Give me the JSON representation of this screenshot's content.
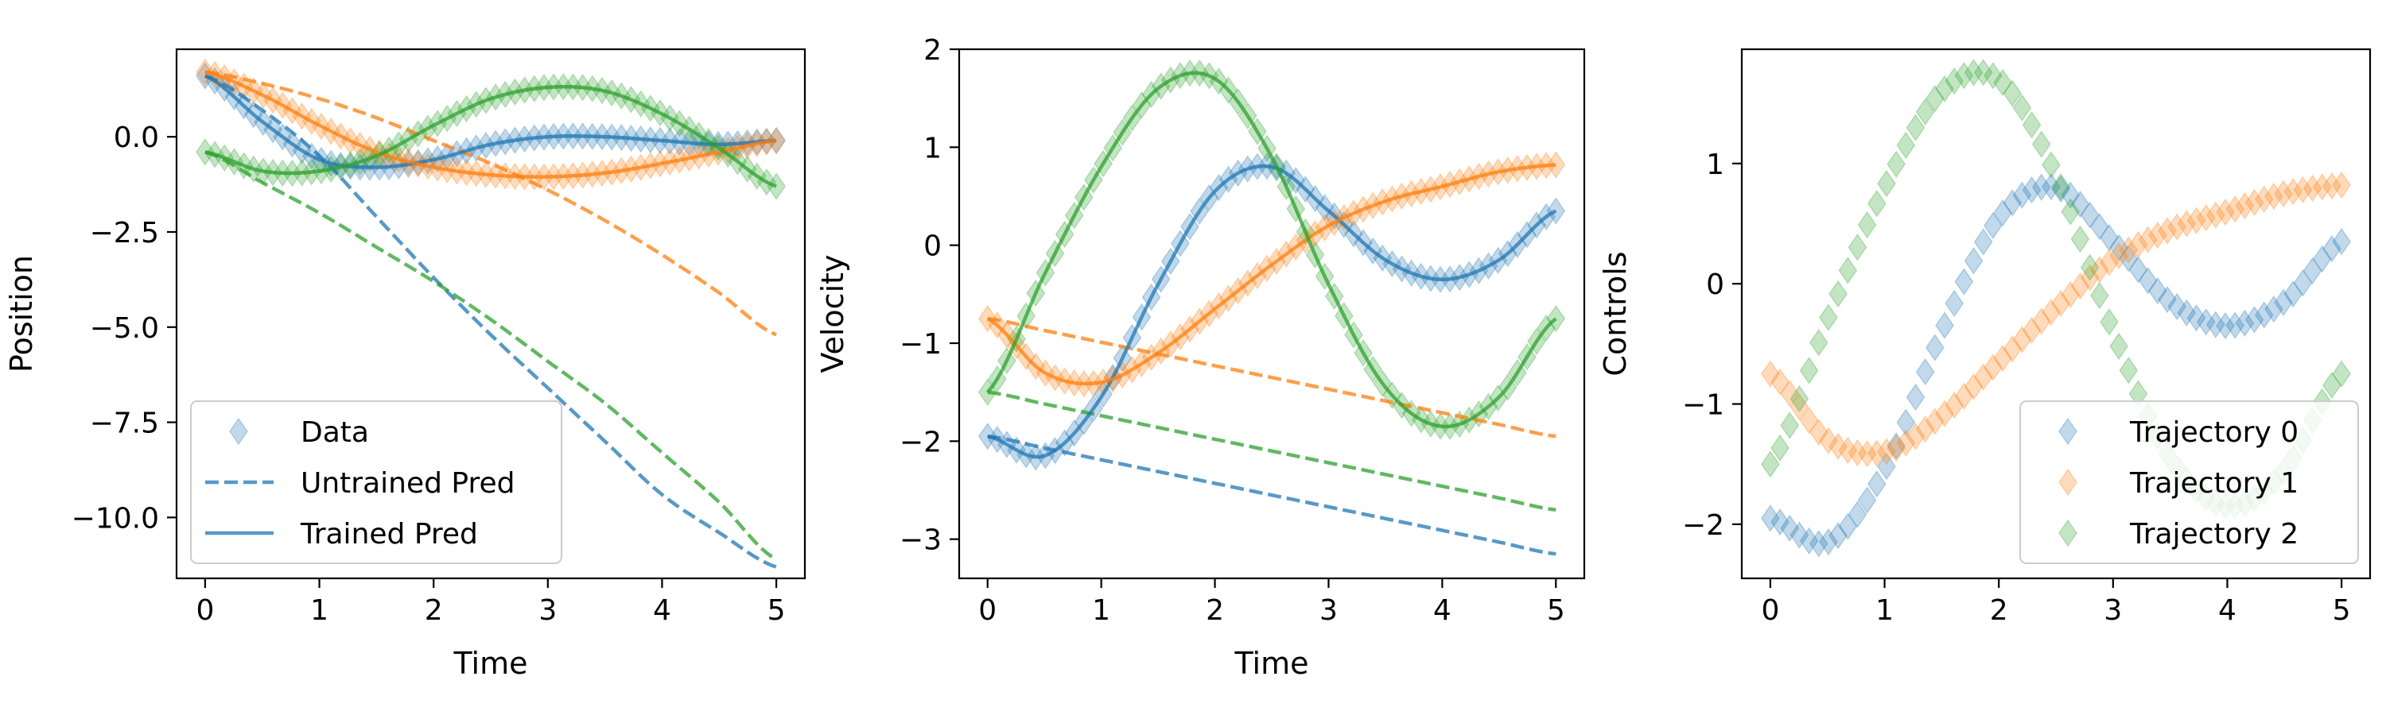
{
  "colors": {
    "traj0": "#1f77b4",
    "traj1": "#ff7f0e",
    "traj2": "#2ca02c"
  },
  "chart_data": [
    {
      "type": "line",
      "id": "position",
      "xlabel": "Time",
      "ylabel": "Position",
      "xlim": [
        -0.25,
        5.25
      ],
      "ylim": [
        -11.6,
        2.3
      ],
      "xticks": [
        0,
        1,
        2,
        3,
        4,
        5
      ],
      "xtick_labels": [
        "0",
        "1",
        "2",
        "3",
        "4",
        "5"
      ],
      "yticks": [
        0.0,
        -2.5,
        -5.0,
        -7.5,
        -10.0
      ],
      "ytick_labels": [
        "0.0",
        "−2.5",
        "−5.0",
        "−7.5",
        "−10.0"
      ],
      "legend_position": "lower-left",
      "legend": [
        {
          "label": "Data",
          "style": "diamond"
        },
        {
          "label": "Untrained Pred",
          "style": "dashed"
        },
        {
          "label": "Trained Pred",
          "style": "solid"
        }
      ],
      "x": [
        0,
        0.5,
        1,
        1.5,
        2,
        2.5,
        3,
        3.5,
        4,
        4.5,
        5
      ],
      "data_series": [
        {
          "color_key": "traj0",
          "values": [
            1.6,
            0.4,
            -0.6,
            -0.8,
            -0.6,
            -0.2,
            0.0,
            0.0,
            -0.1,
            -0.2,
            -0.1
          ]
        },
        {
          "color_key": "traj1",
          "values": [
            1.7,
            1.1,
            0.3,
            -0.4,
            -0.8,
            -1.0,
            -1.05,
            -0.95,
            -0.7,
            -0.4,
            -0.1
          ]
        },
        {
          "color_key": "traj2",
          "values": [
            -0.4,
            -0.9,
            -0.9,
            -0.5,
            0.3,
            1.0,
            1.3,
            1.2,
            0.6,
            -0.3,
            -1.3
          ]
        }
      ],
      "untrained": [
        {
          "color_key": "traj0",
          "values": [
            1.6,
            0.7,
            -0.5,
            -2.1,
            -3.7,
            -5.2,
            -6.6,
            -8.0,
            -9.4,
            -10.4,
            -11.3
          ]
        },
        {
          "color_key": "traj1",
          "values": [
            1.7,
            1.4,
            1.0,
            0.5,
            -0.1,
            -0.7,
            -1.4,
            -2.2,
            -3.1,
            -4.1,
            -5.2
          ]
        },
        {
          "color_key": "traj2",
          "values": [
            -0.4,
            -1.2,
            -2.0,
            -2.9,
            -3.8,
            -4.8,
            -5.9,
            -7.0,
            -8.3,
            -9.6,
            -11.1
          ]
        }
      ]
    },
    {
      "type": "line",
      "id": "velocity",
      "xlabel": "Time",
      "ylabel": "Velocity",
      "xlim": [
        -0.25,
        5.25
      ],
      "ylim": [
        -3.4,
        2.0
      ],
      "xticks": [
        0,
        1,
        2,
        3,
        4,
        5
      ],
      "xtick_labels": [
        "0",
        "1",
        "2",
        "3",
        "4",
        "5"
      ],
      "yticks": [
        2,
        1,
        0,
        -1,
        -2,
        -3
      ],
      "ytick_labels": [
        "2",
        "1",
        "0",
        "−1",
        "−2",
        "−3"
      ],
      "x": [
        0,
        0.5,
        1,
        1.5,
        2,
        2.5,
        3,
        3.5,
        4,
        4.5,
        5
      ],
      "data_series": [
        {
          "color_key": "traj0",
          "values": [
            -1.95,
            -2.15,
            -1.55,
            -0.4,
            0.55,
            0.8,
            0.35,
            -0.15,
            -0.35,
            -0.15,
            0.35
          ]
        },
        {
          "color_key": "traj1",
          "values": [
            -0.75,
            -1.3,
            -1.4,
            -1.1,
            -0.65,
            -0.2,
            0.2,
            0.45,
            0.6,
            0.75,
            0.82
          ]
        },
        {
          "color_key": "traj2",
          "values": [
            -1.5,
            -0.3,
            0.8,
            1.6,
            1.7,
            0.9,
            -0.4,
            -1.45,
            -1.85,
            -1.55,
            -0.75
          ]
        }
      ],
      "untrained": [
        {
          "color_key": "traj0",
          "values": [
            -1.95,
            -2.07,
            -2.19,
            -2.31,
            -2.43,
            -2.55,
            -2.67,
            -2.79,
            -2.91,
            -3.03,
            -3.15
          ]
        },
        {
          "color_key": "traj1",
          "values": [
            -0.75,
            -0.87,
            -0.99,
            -1.11,
            -1.23,
            -1.35,
            -1.47,
            -1.59,
            -1.71,
            -1.83,
            -1.95
          ]
        },
        {
          "color_key": "traj2",
          "values": [
            -1.5,
            -1.62,
            -1.74,
            -1.86,
            -1.98,
            -2.1,
            -2.22,
            -2.34,
            -2.46,
            -2.58,
            -2.7
          ]
        }
      ]
    },
    {
      "type": "scatter",
      "id": "controls",
      "xlabel": "",
      "ylabel": "Controls",
      "xlim": [
        -0.25,
        5.25
      ],
      "ylim": [
        -2.45,
        1.95
      ],
      "xticks": [
        0,
        1,
        2,
        3,
        4,
        5
      ],
      "xtick_labels": [
        "0",
        "1",
        "2",
        "3",
        "4",
        "5"
      ],
      "yticks": [
        1,
        0,
        -1,
        -2
      ],
      "ytick_labels": [
        "1",
        "0",
        "−1",
        "−2"
      ],
      "legend_position": "lower-right",
      "legend": [
        {
          "label": "Trajectory 0",
          "color_key": "traj0"
        },
        {
          "label": "Trajectory 1",
          "color_key": "traj1"
        },
        {
          "label": "Trajectory 2",
          "color_key": "traj2"
        }
      ],
      "x": [
        0,
        0.5,
        1,
        1.5,
        2,
        2.5,
        3,
        3.5,
        4,
        4.5,
        5
      ],
      "data_series": [
        {
          "color_key": "traj0",
          "values": [
            -1.95,
            -2.15,
            -1.55,
            -0.4,
            0.55,
            0.8,
            0.35,
            -0.15,
            -0.35,
            -0.15,
            0.35
          ]
        },
        {
          "color_key": "traj1",
          "values": [
            -0.75,
            -1.3,
            -1.4,
            -1.1,
            -0.65,
            -0.2,
            0.2,
            0.45,
            0.6,
            0.75,
            0.82
          ]
        },
        {
          "color_key": "traj2",
          "values": [
            -1.5,
            -0.3,
            0.8,
            1.6,
            1.7,
            0.9,
            -0.4,
            -1.45,
            -1.85,
            -1.55,
            -0.75
          ]
        }
      ]
    }
  ]
}
